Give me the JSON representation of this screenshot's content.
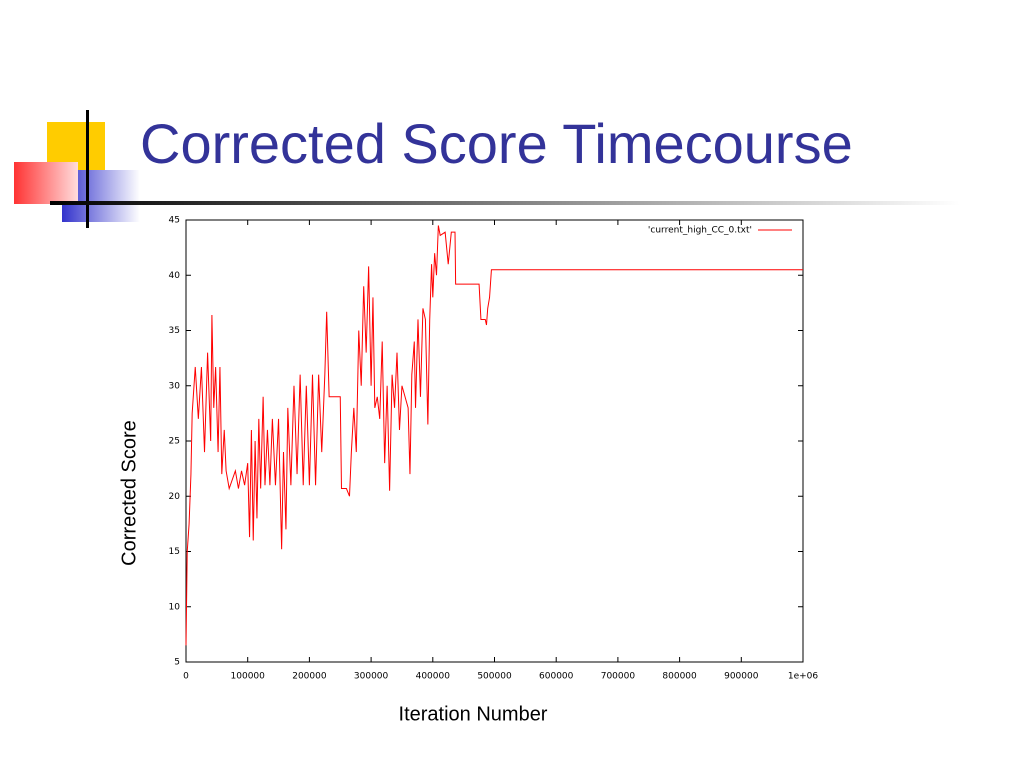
{
  "chart_data": {
    "type": "line",
    "title": "Corrected Score Timecourse",
    "xlabel": "Iteration Number",
    "ylabel": "Corrected Score",
    "legend": "top-right",
    "x": [
      0,
      2000,
      5000,
      8000,
      10000,
      15000,
      20000,
      25000,
      30000,
      35000,
      40000,
      42000,
      45000,
      48000,
      52000,
      55000,
      58000,
      62000,
      65000,
      70000,
      80000,
      85000,
      90000,
      95000,
      100000,
      103000,
      106000,
      109000,
      112000,
      115000,
      118000,
      121000,
      125000,
      128000,
      132000,
      136000,
      140000,
      145000,
      150000,
      155000,
      158000,
      162000,
      165000,
      170000,
      175000,
      180000,
      185000,
      190000,
      195000,
      200000,
      205000,
      210000,
      215000,
      220000,
      225000,
      228000,
      232000,
      250000,
      252000,
      260000,
      265000,
      268000,
      272000,
      276000,
      280000,
      284000,
      288000,
      292000,
      296000,
      300000,
      303000,
      306000,
      310000,
      314000,
      318000,
      322000,
      326000,
      330000,
      334000,
      338000,
      342000,
      346000,
      350000,
      355000,
      360000,
      363000,
      366000,
      370000,
      372000,
      376000,
      380000,
      384000,
      388000,
      392000,
      395000,
      398000,
      400000,
      403000,
      406000,
      409000,
      412000,
      420000,
      425000,
      430000,
      436000,
      437000,
      475000,
      478000,
      485000,
      487000,
      489000,
      492000,
      495000,
      1000000
    ],
    "series": [
      {
        "name": "'current_high_CC_0.txt'",
        "color": "#ff0000",
        "values": [
          6.5,
          15,
          17.5,
          22,
          27.5,
          31.7,
          27,
          31.7,
          24,
          33,
          25,
          36.4,
          28,
          31.7,
          24,
          31.7,
          22,
          26,
          22.3,
          20.7,
          22.3,
          20.7,
          22.3,
          21,
          23,
          16.3,
          26,
          16,
          25,
          18,
          27,
          20.7,
          29,
          21,
          26,
          21,
          27,
          21,
          27,
          15.2,
          24,
          17,
          28,
          21,
          30,
          22,
          31,
          21,
          30,
          21,
          31,
          21,
          31,
          24,
          31,
          36.7,
          29,
          29,
          20.7,
          20.7,
          20,
          24,
          28,
          24,
          35,
          30,
          39,
          33,
          40.8,
          30,
          38,
          28,
          29,
          27,
          34,
          23,
          30,
          20.5,
          31,
          28,
          33,
          26,
          30,
          29,
          28,
          22,
          31,
          34,
          28,
          36,
          29,
          37,
          36,
          26.5,
          36,
          41,
          38,
          42,
          40,
          44.5,
          43.6,
          43.9,
          41,
          43.9,
          43.9,
          39.2,
          39.2,
          36,
          36,
          35.5,
          37,
          38,
          40.5,
          40.5
        ]
      }
    ],
    "xlim": [
      0,
      1000000
    ],
    "xticks": [
      0,
      100000,
      200000,
      300000,
      400000,
      500000,
      600000,
      700000,
      800000,
      900000,
      {
        "value": 1000000,
        "label": "1e+06"
      }
    ],
    "ylim": [
      5,
      45
    ],
    "yticks": [
      5,
      10,
      15,
      20,
      25,
      30,
      35,
      40,
      45
    ]
  }
}
